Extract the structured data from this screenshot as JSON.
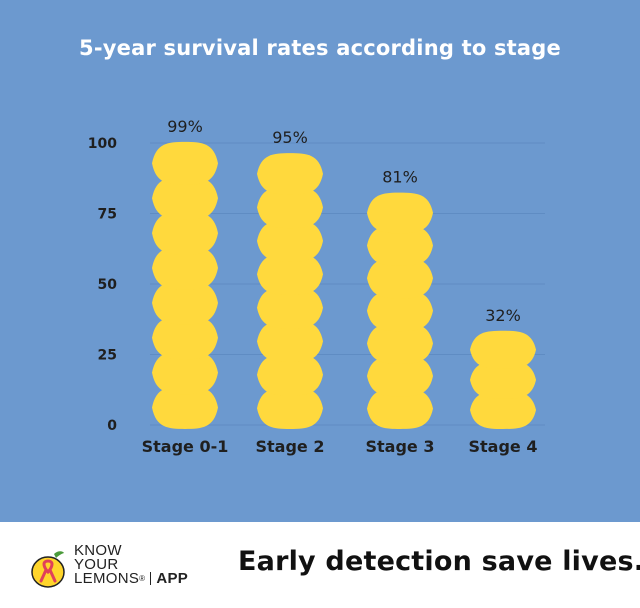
{
  "chart_data": {
    "type": "bar",
    "title": "5-year survival rates according to stage",
    "categories": [
      "Stage 0-1",
      "Stage 2",
      "Stage 3",
      "Stage 4"
    ],
    "values": [
      99,
      95,
      81,
      32
    ],
    "value_labels": [
      "99%",
      "95%",
      "81%",
      "32%"
    ],
    "y_ticks": [
      "0",
      "25",
      "50",
      "75",
      "100"
    ],
    "ylim": [
      0,
      100
    ],
    "grid": true,
    "bar_style": "stacked lemons",
    "colors": {
      "background": "#6c99cf",
      "bar": "#ffd93d",
      "grid": "#5f8cc3"
    }
  },
  "footer": {
    "brand": {
      "line1": "KNOW",
      "line2": "YOUR",
      "line3": "LEMONS",
      "reg": "®",
      "app": "APP"
    },
    "tagline": "Early detection save lives."
  }
}
